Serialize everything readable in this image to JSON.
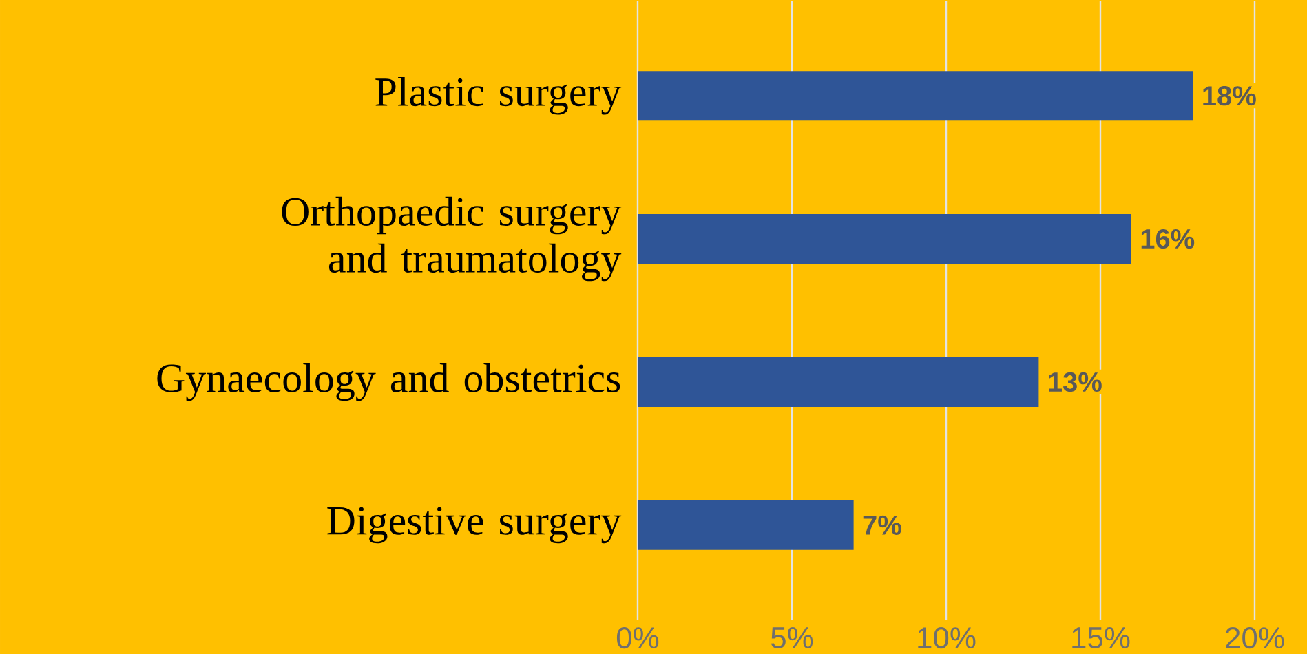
{
  "chart_data": {
    "type": "bar",
    "orientation": "horizontal",
    "categories": [
      "Plastic surgery",
      "Orthopaedic surgery and traumatology",
      "Gynaecology and obstetrics",
      "Digestive surgery"
    ],
    "values": [
      18,
      16,
      13,
      7
    ],
    "value_labels": [
      "18%",
      "16%",
      "13%",
      "7%"
    ],
    "color": "#2f5597",
    "xlim": [
      0,
      20
    ],
    "xticks": [
      {
        "value": 0,
        "label": "0%"
      },
      {
        "value": 5,
        "label": "5%"
      },
      {
        "value": 10,
        "label": "10%"
      },
      {
        "value": 15,
        "label": "15%"
      },
      {
        "value": 20,
        "label": "20%"
      }
    ],
    "grid": "x"
  }
}
